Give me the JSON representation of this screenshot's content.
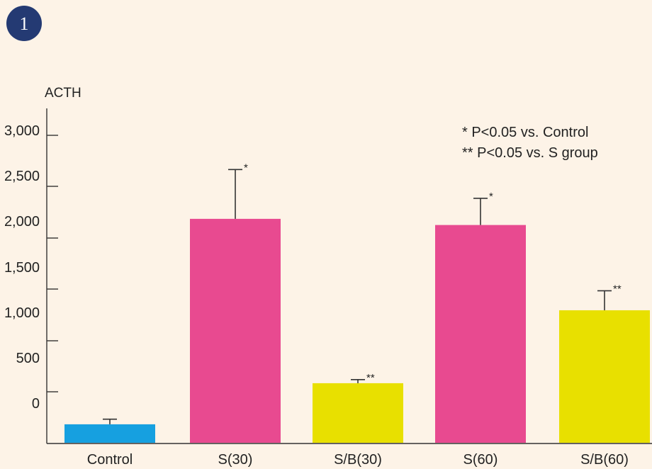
{
  "badge": {
    "label": "1"
  },
  "chart_data": {
    "type": "bar",
    "ylabel": "ACTH",
    "y_tick_labels": [
      "0",
      "500",
      "1,000",
      "1,500",
      "2,000",
      "2,500",
      "3,000"
    ],
    "categories": [
      "Control",
      "S(30)",
      "S/B(30)",
      "S(60)",
      "S/B(60)"
    ],
    "values": [
      180,
      2180,
      580,
      2120,
      1290
    ],
    "errors": [
      50,
      480,
      35,
      260,
      190
    ],
    "significance": [
      "",
      "*",
      "**",
      "*",
      "**"
    ],
    "colors": [
      "#16a0e0",
      "#e84a90",
      "#e8e000",
      "#e84a90",
      "#e8e000"
    ],
    "annotations": [
      "*  P<0.05 vs. Control",
      "** P<0.05 vs. S group"
    ],
    "grid": false
  }
}
